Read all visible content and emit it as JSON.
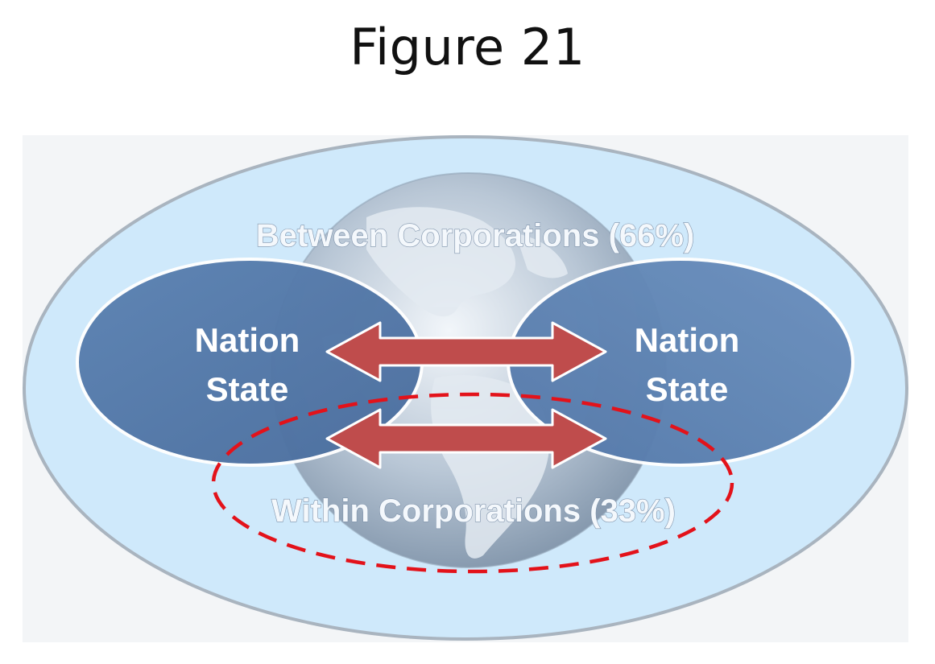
{
  "title": "Figure 21",
  "diagram": {
    "outer_label": "Between Corporations (66%)",
    "inner_label": "Within Corporations (33%)",
    "left_node": {
      "line1": "Nation",
      "line2": "State"
    },
    "right_node": {
      "line1": "Nation",
      "line2": "State"
    },
    "colors": {
      "outer_fill": "#cfe9fb",
      "outer_border": "#a9b4bf",
      "node_fill": "#5479a9",
      "arrow_fill": "#bf4c4c",
      "dashed_line": "#e3121a"
    },
    "icons": {
      "background": "globe-icon",
      "connector": "double-arrow-icon"
    }
  }
}
